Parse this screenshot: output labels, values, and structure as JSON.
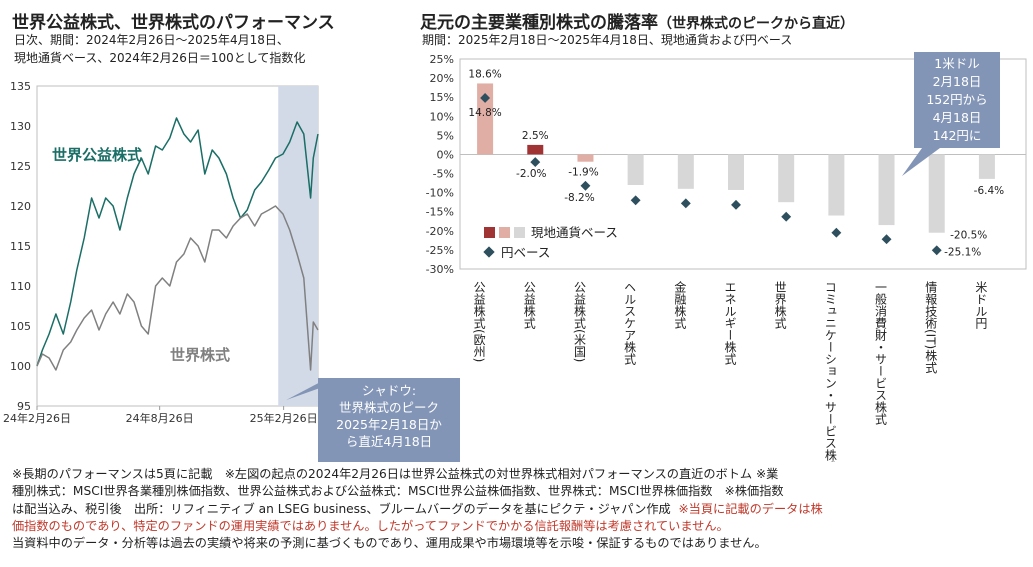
{
  "left_panel": {
    "title": "世界公益株式、世界株式のパフォーマンス",
    "subtitle_line1": "日次、期間：2024年2月26日～2025年4月18日、",
    "subtitle_line2": "現地通貨ベース、2024年2月26日＝100として指数化",
    "series_label_public": "世界公益株式",
    "series_label_world": "世界株式",
    "callout": [
      "シャドウ:",
      "世界株式のピーク",
      "2025年2月18日か",
      "ら直近4月18日"
    ]
  },
  "right_panel": {
    "title": "足元の主要業種別株式の騰落率",
    "title_suffix": "（世界株式のピークから直近）",
    "subtitle": "期間：2025年2月18日～2025年4月18日、現地通貨および円ベース",
    "legend_local": "現地通貨ベース",
    "legend_yen": "円ベース",
    "fx_note": [
      "1米ドル",
      "2月18日",
      "152円から",
      "4月18日",
      "142円に"
    ]
  },
  "colors": {
    "public_line": "#1a6e66",
    "world_line": "#808080",
    "shade": "#d2dae8",
    "callout_bg": "#8395b6",
    "bar_highlight": "#a03434",
    "bar_pink": "#e1aea5",
    "bar_gray": "#d7d7d7",
    "marker": "#2e4f5e"
  },
  "chart_data": [
    {
      "type": "line",
      "y_ticks": [
        "95",
        "100",
        "105",
        "110",
        "115",
        "120",
        "125",
        "130",
        "135"
      ],
      "ylim": [
        95,
        135
      ],
      "x_ticks": [
        "24年2月26日",
        "24年8月26日",
        "25年2月26日"
      ],
      "shaded_period": [
        "2025-02-18",
        "2025-04-18"
      ],
      "series": [
        {
          "name": "世界公益株式",
          "x": [
            "2024-02-26",
            "2024-03-05",
            "2024-03-15",
            "2024-03-25",
            "2024-04-05",
            "2024-04-16",
            "2024-04-25",
            "2024-05-06",
            "2024-05-17",
            "2024-05-28",
            "2024-06-07",
            "2024-06-18",
            "2024-06-28",
            "2024-07-09",
            "2024-07-19",
            "2024-07-30",
            "2024-08-09",
            "2024-08-20",
            "2024-08-30",
            "2024-09-10",
            "2024-09-20",
            "2024-10-01",
            "2024-10-11",
            "2024-10-22",
            "2024-11-01",
            "2024-11-12",
            "2024-11-22",
            "2024-12-03",
            "2024-12-13",
            "2024-12-24",
            "2025-01-03",
            "2025-01-14",
            "2025-01-24",
            "2025-02-04",
            "2025-02-14",
            "2025-02-25",
            "2025-03-07",
            "2025-03-18",
            "2025-03-28",
            "2025-04-07",
            "2025-04-11",
            "2025-04-18"
          ],
          "values": [
            100,
            102,
            104,
            106.5,
            104,
            108,
            112,
            116,
            121,
            118.5,
            121,
            120,
            117,
            121,
            124,
            126,
            124,
            127.5,
            127,
            128.5,
            131,
            129,
            128,
            129.5,
            124,
            127,
            126,
            124,
            121,
            118.5,
            119.5,
            122,
            123,
            124.5,
            126,
            126.5,
            128,
            130.5,
            129,
            121,
            126,
            129
          ]
        },
        {
          "name": "世界株式",
          "x": [
            "2024-02-26",
            "2024-03-05",
            "2024-03-15",
            "2024-03-25",
            "2024-04-05",
            "2024-04-16",
            "2024-04-25",
            "2024-05-06",
            "2024-05-17",
            "2024-05-28",
            "2024-06-07",
            "2024-06-18",
            "2024-06-28",
            "2024-07-09",
            "2024-07-19",
            "2024-07-30",
            "2024-08-09",
            "2024-08-20",
            "2024-08-30",
            "2024-09-10",
            "2024-09-20",
            "2024-10-01",
            "2024-10-11",
            "2024-10-22",
            "2024-11-01",
            "2024-11-12",
            "2024-11-22",
            "2024-12-03",
            "2024-12-13",
            "2024-12-24",
            "2025-01-03",
            "2025-01-14",
            "2025-01-24",
            "2025-02-04",
            "2025-02-14",
            "2025-02-25",
            "2025-03-07",
            "2025-03-18",
            "2025-03-28",
            "2025-04-07",
            "2025-04-11",
            "2025-04-18"
          ],
          "values": [
            100,
            101.5,
            101,
            99.5,
            102,
            103,
            104.5,
            106,
            107,
            104.5,
            106.5,
            108,
            106.5,
            109,
            108,
            105,
            104,
            110,
            111,
            110,
            113,
            114,
            116,
            115,
            113,
            117,
            117,
            116,
            117.5,
            118.5,
            119,
            117.5,
            119,
            119.5,
            120,
            119,
            117,
            114,
            111,
            99.5,
            105.5,
            104.5
          ]
        }
      ]
    },
    {
      "type": "bar",
      "y_ticks": [
        "25%",
        "20%",
        "15%",
        "10%",
        "5%",
        "0%",
        "-5%",
        "-10%",
        "-15%",
        "-20%",
        "-25%",
        "-30%"
      ],
      "ylim": [
        -30,
        25
      ],
      "categories": [
        "公益株式(欧州)",
        "公益株式",
        "公益株式(米国)",
        "ヘルスケア株式",
        "金融株式",
        "エネルギー株式",
        "世界株式",
        "コミュニケーション・サービス株式",
        "一般消費財・サービス株式",
        "情報技術(IT)株式",
        "米ドル円"
      ],
      "series": [
        {
          "name": "現地通貨ベース",
          "values": [
            18.6,
            2.5,
            -1.9,
            -8.0,
            -9.0,
            -9.3,
            -12.5,
            -16.0,
            -18.5,
            -20.5,
            -6.4
          ]
        },
        {
          "name": "円ベース",
          "values": [
            14.8,
            -2.0,
            -8.2,
            -12.0,
            -12.8,
            -13.2,
            -16.3,
            -20.5,
            -22.2,
            -25.1,
            null
          ]
        }
      ],
      "data_labels": {
        "local": [
          "18.6%",
          "2.5%",
          "-1.9%",
          "",
          "",
          "",
          "",
          "",
          "",
          "-20.5%",
          "-6.4%"
        ],
        "yen": [
          "14.8%",
          "-2.0%",
          "-8.2%",
          "",
          "",
          "",
          "",
          "",
          "",
          "-25.1%",
          ""
        ]
      }
    }
  ],
  "notes": {
    "line1": "※長期のパフォーマンスは5頁に記載　※左図の起点の2024年2月26日は世界公益株式の対世界株式相対パフォーマンスの直近のボトム ※業",
    "line2": "種別株式：MSCI世界各業種別株価指数、世界公益株式および公益株式：MSCI世界公益株価指数、世界株式：MSCI世界株価指数　※株価指数",
    "line3": "は配当込み、税引後　出所：リフィニティブ an LSEG business、ブルームバーグのデータを基にピクテ・ジャパン作成",
    "line3_red": "※当頁に記載のデータは株",
    "line4_red": "価指数のものであり、特定のファンドの運用実績ではありません。したがってファンドでかかる信託報酬等は考慮されていません。",
    "line5": "当資料中のデータ・分析等は過去の実績や将来の予測に基づくものであり、運用成果や市場環境等を示唆・保証するものではありません。"
  }
}
